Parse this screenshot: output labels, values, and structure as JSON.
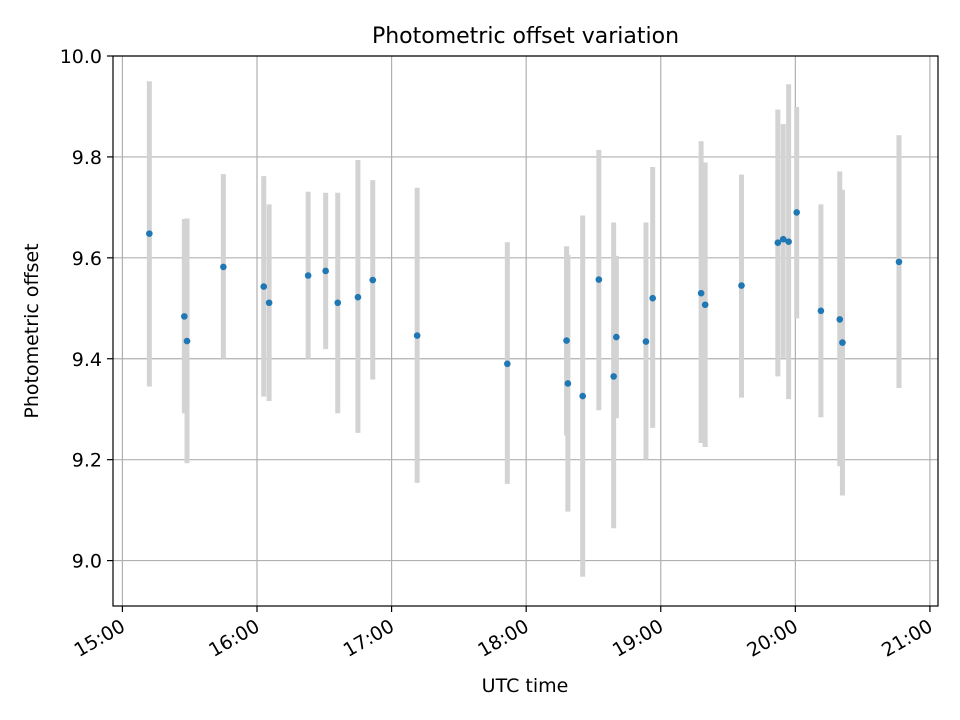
{
  "chart_data": {
    "type": "scatter",
    "title": "Photometric offset variation",
    "xlabel": "UTC time",
    "ylabel": "Photometric offset",
    "xlim": [
      14.93,
      21.06
    ],
    "ylim": [
      8.91,
      10.0
    ],
    "grid": true,
    "x_ticks": [
      {
        "value": 15,
        "label": "15:00"
      },
      {
        "value": 16,
        "label": "16:00"
      },
      {
        "value": 17,
        "label": "17:00"
      },
      {
        "value": 18,
        "label": "18:00"
      },
      {
        "value": 19,
        "label": "19:00"
      },
      {
        "value": 20,
        "label": "20:00"
      },
      {
        "value": 21,
        "label": "21:00"
      }
    ],
    "y_ticks": [
      {
        "value": 9.0,
        "label": "9.0"
      },
      {
        "value": 9.2,
        "label": "9.2"
      },
      {
        "value": 9.4,
        "label": "9.4"
      },
      {
        "value": 9.6,
        "label": "9.6"
      },
      {
        "value": 9.8,
        "label": "9.8"
      },
      {
        "value": 10.0,
        "label": "10.0"
      }
    ],
    "series": [
      {
        "name": "photometric offset",
        "marker_color": "#1f77b4",
        "errorbar_color": "#d3d3d3",
        "points": [
          {
            "x": 15.2,
            "y": 9.648,
            "ylo": 9.345,
            "yhi": 9.95
          },
          {
            "x": 15.46,
            "y": 9.484,
            "ylo": 9.292,
            "yhi": 9.677
          },
          {
            "x": 15.48,
            "y": 9.435,
            "ylo": 9.193,
            "yhi": 9.678
          },
          {
            "x": 15.75,
            "y": 9.582,
            "ylo": 9.4,
            "yhi": 9.766
          },
          {
            "x": 16.05,
            "y": 9.543,
            "ylo": 9.325,
            "yhi": 9.762
          },
          {
            "x": 16.09,
            "y": 9.511,
            "ylo": 9.316,
            "yhi": 9.706
          },
          {
            "x": 16.38,
            "y": 9.565,
            "ylo": 9.4,
            "yhi": 9.731
          },
          {
            "x": 16.51,
            "y": 9.574,
            "ylo": 9.419,
            "yhi": 9.729
          },
          {
            "x": 16.6,
            "y": 9.511,
            "ylo": 9.292,
            "yhi": 9.729
          },
          {
            "x": 16.75,
            "y": 9.522,
            "ylo": 9.253,
            "yhi": 9.794
          },
          {
            "x": 16.86,
            "y": 9.556,
            "ylo": 9.359,
            "yhi": 9.754
          },
          {
            "x": 17.19,
            "y": 9.446,
            "ylo": 9.154,
            "yhi": 9.739
          },
          {
            "x": 17.86,
            "y": 9.39,
            "ylo": 9.152,
            "yhi": 9.631
          },
          {
            "x": 18.3,
            "y": 9.436,
            "ylo": 9.248,
            "yhi": 9.623
          },
          {
            "x": 18.31,
            "y": 9.351,
            "ylo": 9.097,
            "yhi": 9.606
          },
          {
            "x": 18.42,
            "y": 9.326,
            "ylo": 8.968,
            "yhi": 9.684
          },
          {
            "x": 18.54,
            "y": 9.557,
            "ylo": 9.298,
            "yhi": 9.814
          },
          {
            "x": 18.65,
            "y": 9.365,
            "ylo": 9.064,
            "yhi": 9.67
          },
          {
            "x": 18.67,
            "y": 9.443,
            "ylo": 9.282,
            "yhi": 9.604
          },
          {
            "x": 18.89,
            "y": 9.434,
            "ylo": 9.2,
            "yhi": 9.67
          },
          {
            "x": 18.94,
            "y": 9.52,
            "ylo": 9.263,
            "yhi": 9.78
          },
          {
            "x": 19.3,
            "y": 9.53,
            "ylo": 9.233,
            "yhi": 9.831
          },
          {
            "x": 19.33,
            "y": 9.507,
            "ylo": 9.225,
            "yhi": 9.789
          },
          {
            "x": 19.6,
            "y": 9.545,
            "ylo": 9.323,
            "yhi": 9.765
          },
          {
            "x": 19.87,
            "y": 9.63,
            "ylo": 9.365,
            "yhi": 9.894
          },
          {
            "x": 19.91,
            "y": 9.637,
            "ylo": 9.402,
            "yhi": 9.865
          },
          {
            "x": 19.95,
            "y": 9.632,
            "ylo": 9.32,
            "yhi": 9.944
          },
          {
            "x": 20.01,
            "y": 9.69,
            "ylo": 9.48,
            "yhi": 9.899
          },
          {
            "x": 20.19,
            "y": 9.495,
            "ylo": 9.284,
            "yhi": 9.706
          },
          {
            "x": 20.33,
            "y": 9.478,
            "ylo": 9.187,
            "yhi": 9.771
          },
          {
            "x": 20.35,
            "y": 9.432,
            "ylo": 9.129,
            "yhi": 9.735
          },
          {
            "x": 20.77,
            "y": 9.592,
            "ylo": 9.342,
            "yhi": 9.843
          }
        ]
      }
    ]
  }
}
